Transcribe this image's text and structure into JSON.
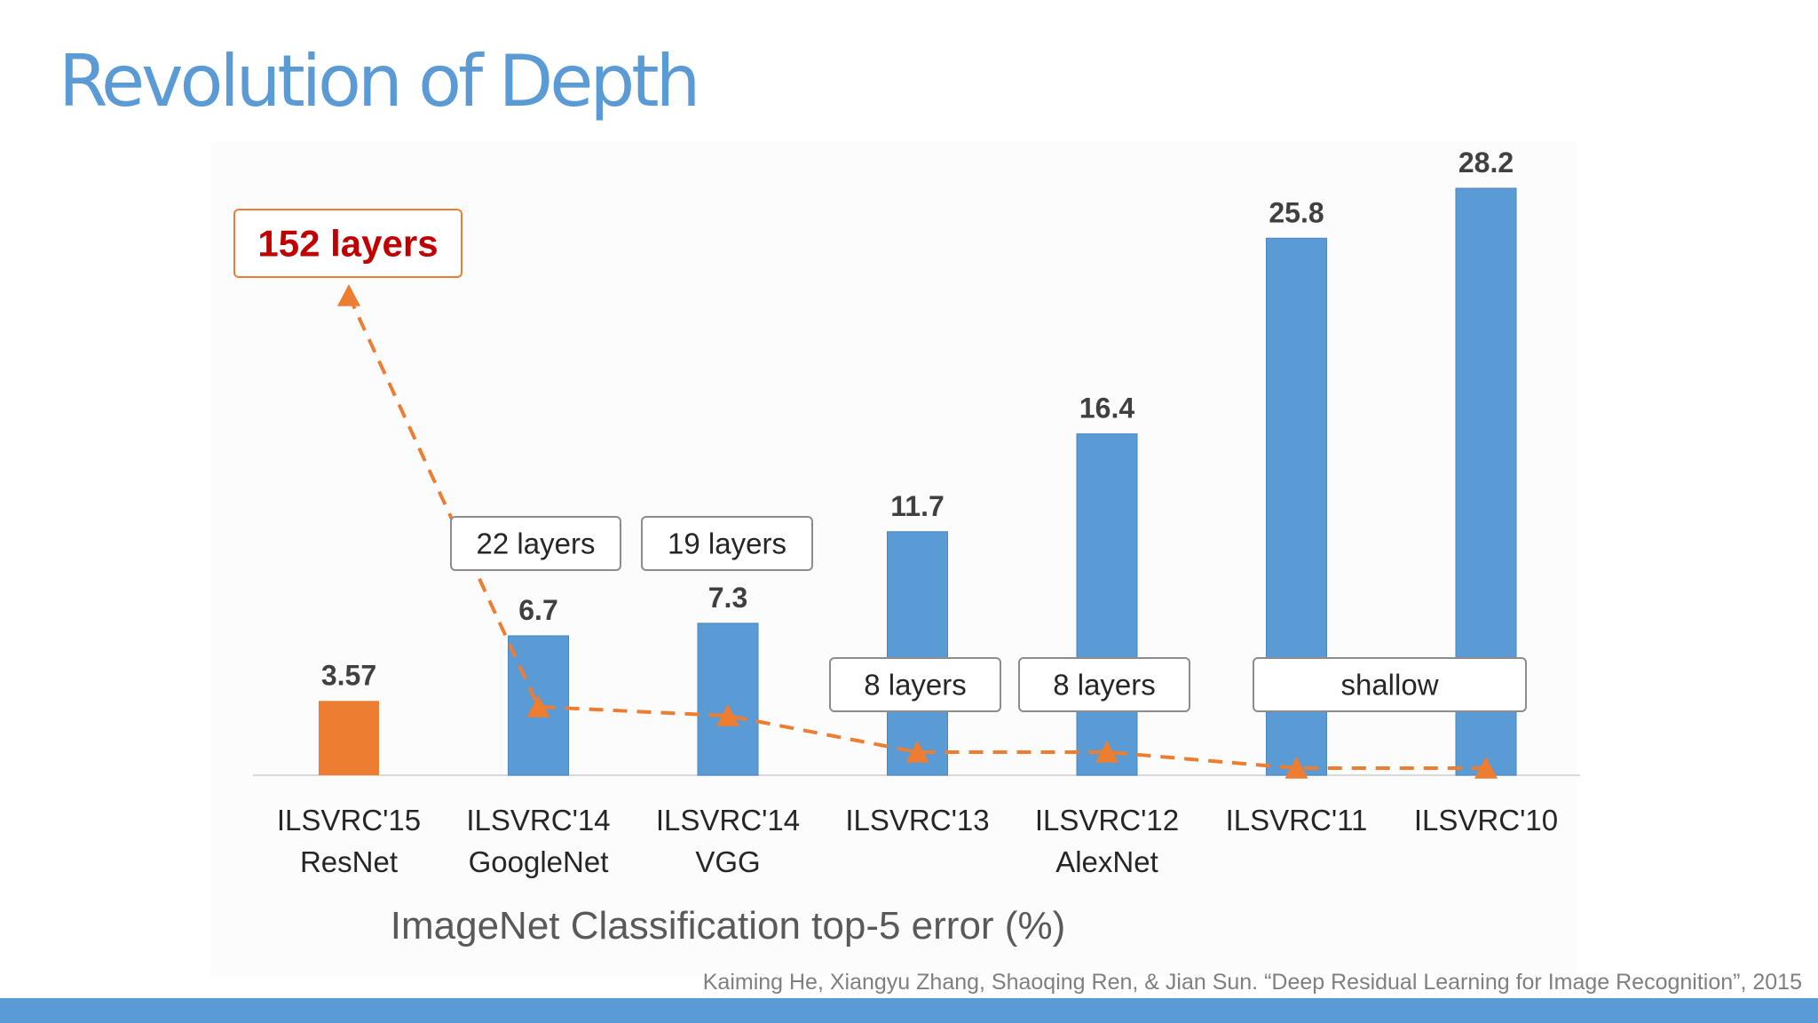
{
  "slide": {
    "title": "Revolution of Depth",
    "citation": "Kaiming He, Xiangyu Zhang, Shaoqing Ren, & Jian Sun. “Deep Residual Learning for Image Recognition”, 2015"
  },
  "chart_data": {
    "type": "bar",
    "xlabel": "ImageNet Classification top-5 error (%)",
    "ylabel": "",
    "ylim": [
      0,
      30
    ],
    "grid": false,
    "categories": [
      [
        "ILSVRC'15",
        "ResNet"
      ],
      [
        "ILSVRC'14",
        "GoogleNet"
      ],
      [
        "ILSVRC'14",
        "VGG"
      ],
      [
        "ILSVRC'13"
      ],
      [
        "ILSVRC'12",
        "AlexNet"
      ],
      [
        "ILSVRC'11"
      ],
      [
        "ILSVRC'10"
      ]
    ],
    "values": [
      3.57,
      6.7,
      7.3,
      11.7,
      16.4,
      25.8,
      28.2
    ],
    "value_labels": [
      "3.57",
      "6.7",
      "7.3",
      "11.7",
      "16.4",
      "25.8",
      "28.2"
    ],
    "bar_colors": [
      "#ed7d31",
      "#5b9bd5",
      "#5b9bd5",
      "#5b9bd5",
      "#5b9bd5",
      "#5b9bd5",
      "#5b9bd5"
    ],
    "depth_series": {
      "name": "layers",
      "style": "dashed line with triangle markers",
      "color": "#ed7d31",
      "values": [
        152,
        22,
        19,
        8,
        8,
        2,
        2
      ]
    },
    "annotations": [
      {
        "text": "152 layers",
        "highlight": true
      },
      {
        "text": "22 layers"
      },
      {
        "text": "19 layers"
      },
      {
        "text": "8 layers"
      },
      {
        "text": "8 layers"
      },
      {
        "text": "shallow"
      }
    ]
  }
}
